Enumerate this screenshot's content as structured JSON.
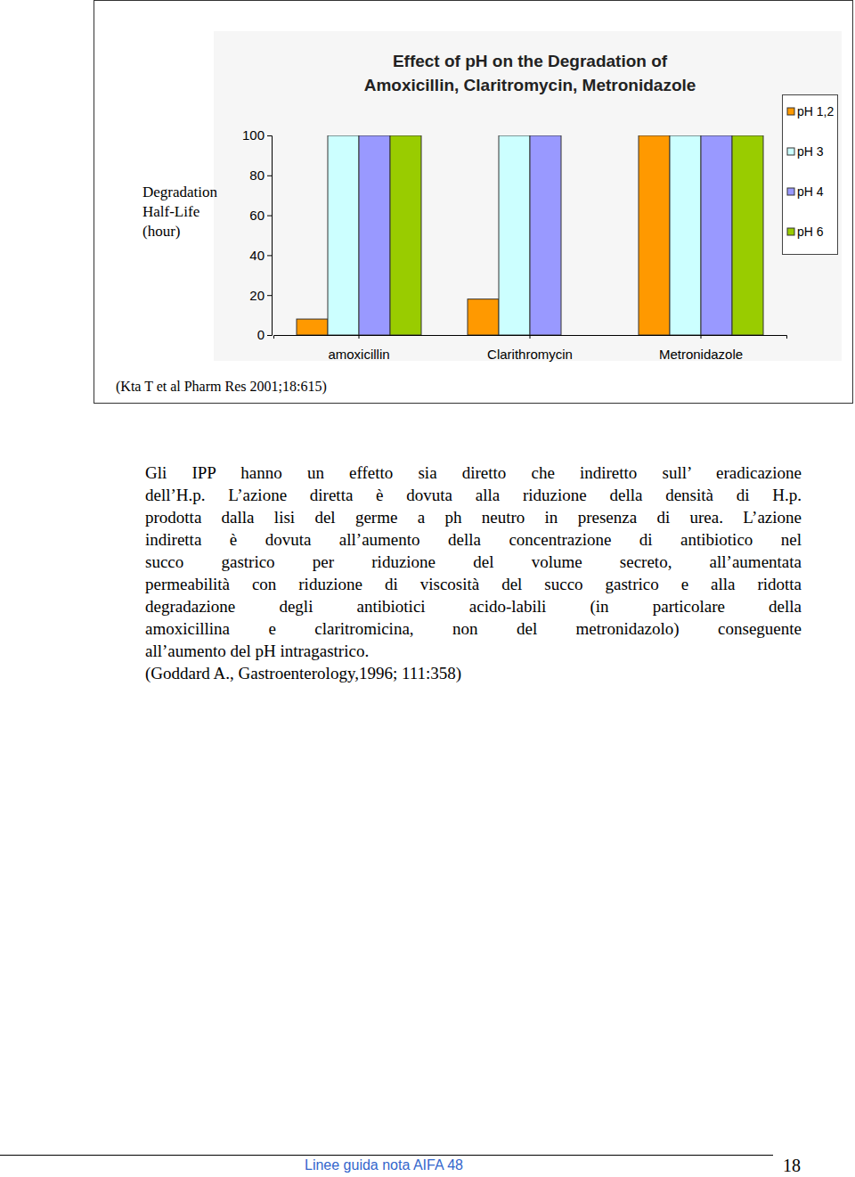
{
  "chart_data": {
    "type": "bar",
    "title": [
      "Effect of pH on the Degradation of",
      "Amoxicillin, Claritromycin, Metronidazole"
    ],
    "y_label": [
      "Degradation",
      "Half-Life",
      "(hour)"
    ],
    "categories": [
      "amoxicillin",
      "Clarithromycin",
      "Metronidazole"
    ],
    "series": [
      {
        "name": "pH 1,2",
        "color": "#ff9900",
        "values": [
          8,
          18,
          100
        ]
      },
      {
        "name": "pH 3",
        "color": "#ccffff",
        "values": [
          100,
          100,
          100
        ]
      },
      {
        "name": "pH 4",
        "color": "#9999ff",
        "values": [
          100,
          100,
          100
        ]
      },
      {
        "name": "pH 6",
        "color": "#99cc00",
        "values": [
          100,
          null,
          100
        ]
      }
    ],
    "ylim": [
      0,
      100
    ],
    "yticks": [
      0,
      20,
      40,
      60,
      80,
      100
    ],
    "legend": "right",
    "source": "(Kta T et al Pharm Res 2001;18:615)"
  },
  "paragraph": {
    "lines": [
      "Gli IPP hanno un effetto sia diretto che indiretto sull’ eradicazione",
      "dell’H.p. L’azione diretta è dovuta alla riduzione della densità di H.p.",
      "prodotta dalla lisi del germe a ph neutro in presenza di urea. L’azione",
      "indiretta è dovuta all’aumento della concentrazione di antibiotico nel",
      "succo gastrico per riduzione del volume secreto, all’aumentata",
      "permeabilità con riduzione di viscosità del succo gastrico e alla ridotta",
      "degradazione degli antibiotici acido-labili (in particolare della",
      "amoxicillina e claritromicina, non del metronidazolo) conseguente",
      "all’aumento del pH intragastrico.",
      "(Goddard A., Gastroenterology,1996; 111:358)"
    ]
  },
  "footer": {
    "text": "Linee guida nota AIFA 48",
    "page": 18
  }
}
